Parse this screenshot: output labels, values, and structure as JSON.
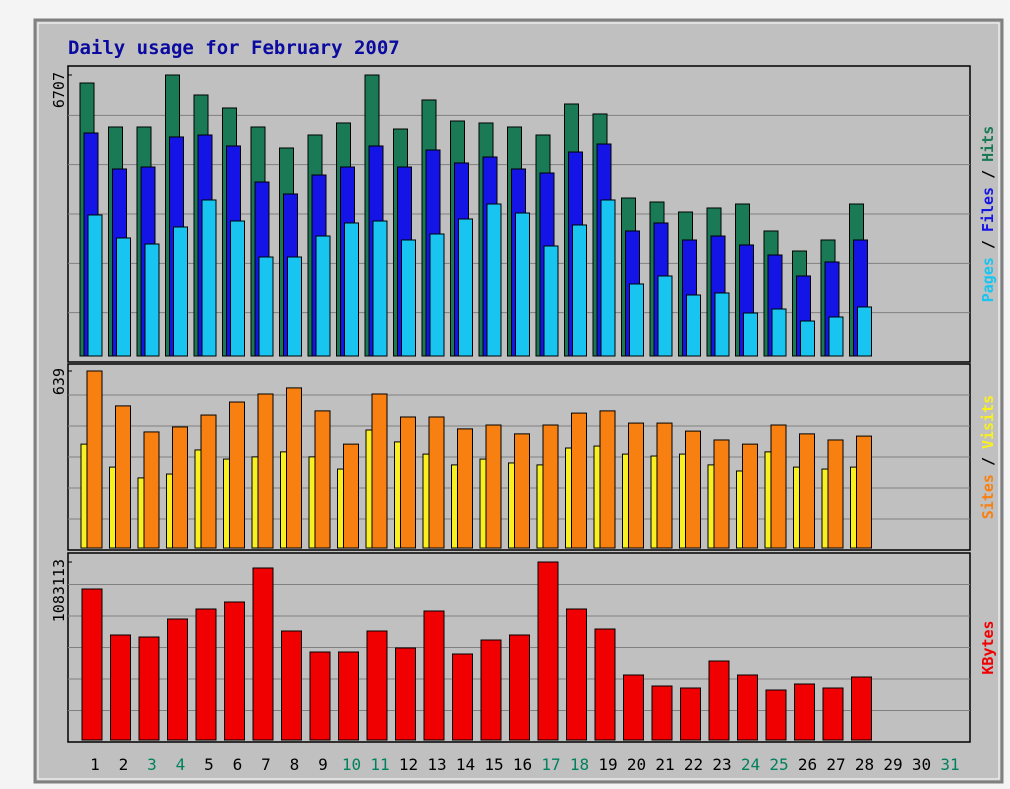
{
  "chart_data": {
    "type": "bar",
    "title": "Daily usage for February 2007",
    "separator": "/",
    "categories": [
      "1",
      "2",
      "3",
      "4",
      "5",
      "6",
      "7",
      "8",
      "9",
      "10",
      "11",
      "12",
      "13",
      "14",
      "15",
      "16",
      "17",
      "18",
      "19",
      "20",
      "21",
      "22",
      "23",
      "24",
      "25",
      "26",
      "27",
      "28",
      "29",
      "30",
      "31"
    ],
    "category_colors": [
      "#000000",
      "#000000",
      "#00805c",
      "#00805c",
      "#000000",
      "#000000",
      "#000000",
      "#000000",
      "#000000",
      "#00805c",
      "#00805c",
      "#000000",
      "#000000",
      "#000000",
      "#000000",
      "#000000",
      "#00805c",
      "#00805c",
      "#000000",
      "#000000",
      "#000000",
      "#000000",
      "#000000",
      "#00805c",
      "#00805c",
      "#000000",
      "#000000",
      "#000000",
      "#000000",
      "#000000",
      "#00805c"
    ],
    "panels": [
      {
        "ylim": [
          0,
          6707
        ],
        "yticks": [
          6707
        ],
        "series": [
          {
            "name": "Pages",
            "color": "#18c4f0",
            "values": [
              3366,
              2817,
              2673,
              3079,
              3724,
              3222,
              2363,
              2363,
              2864,
              3175,
              3222,
              2769,
              2912,
              3270,
              3628,
              3413,
              2626,
              3127,
              3724,
              1719,
              1910,
              1456,
              1504,
              1026,
              1122,
              835,
              931,
              1170,
              null,
              null,
              null
            ]
          },
          {
            "name": "Files",
            "color": "#1414e6",
            "values": [
              5323,
              4464,
              4511,
              5228,
              5275,
              5013,
              4153,
              3867,
              4320,
              4511,
              5013,
              4511,
              4917,
              4607,
              4750,
              4464,
              4368,
              4869,
              5060,
              2984,
              3175,
              2769,
              2864,
              2650,
              2411,
              1910,
              2244,
              2769,
              null,
              null,
              null
            ]
          },
          {
            "name": "Hits",
            "color": "#1a7a56",
            "values": [
              6516,
              5466,
              5466,
              6707,
              6230,
              5920,
              5466,
              4965,
              5275,
              5562,
              6707,
              5418,
              6111,
              5609,
              5562,
              5466,
              5275,
              6015,
              5777,
              3771,
              3676,
              3437,
              3533,
              3628,
              2984,
              2506,
              2769,
              3628,
              null,
              null,
              null
            ]
          }
        ]
      },
      {
        "ylim": [
          0,
          639
        ],
        "yticks": [
          639
        ],
        "series": [
          {
            "name": "Sites",
            "color": "#f88010",
            "values": [
              639,
              513,
              419,
              437,
              480,
              527,
              556,
              578,
              495,
              375,
              556,
              473,
              473,
              430,
              444,
              412,
              444,
              487,
              495,
              451,
              451,
              422,
              390,
              375,
              444,
              412,
              390,
              404,
              null,
              null,
              null
            ]
          },
          {
            "name": "Visits",
            "color": "#f8f020",
            "values": [
              375,
              292,
              253,
              267,
              354,
              321,
              329,
              347,
              329,
              285,
              426,
              383,
              339,
              300,
              321,
              307,
              300,
              361,
              368,
              339,
              332,
              339,
              300,
              278,
              347,
              292,
              285,
              292,
              null,
              null,
              null
            ]
          }
        ]
      },
      {
        "ylim": [
          0,
          1083113
        ],
        "yticks": [
          1083113
        ],
        "series": [
          {
            "name": "KBytes",
            "color": "#f00000",
            "values": [
              918835,
              638925,
              626755,
              736285,
              797135,
              839730,
              1046620,
              663265,
              535480,
              535480,
              663265,
              559820,
              784965,
              523310,
              608500,
              638925,
              1083113,
              797135,
              675435,
              395525,
              328590,
              316420,
              480715,
              395525,
              304250,
              340760,
              316420,
              383355,
              null,
              null,
              null
            ]
          }
        ]
      }
    ]
  }
}
